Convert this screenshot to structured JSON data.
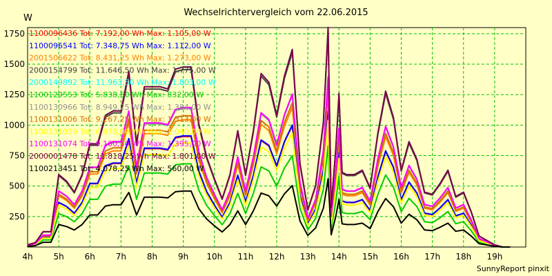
{
  "chart_data": {
    "type": "line",
    "title": "Wechselrichtervergleich vom 22.06.2015",
    "ylabel": "W",
    "xlabel": "",
    "ylim": [
      0,
      1800
    ],
    "xlim": [
      4,
      20
    ],
    "yticks": [
      250,
      500,
      750,
      1000,
      1250,
      1500,
      1750
    ],
    "xticks": [
      4,
      5,
      6,
      7,
      8,
      9,
      10,
      11,
      12,
      13,
      14,
      15,
      16,
      17,
      18,
      19
    ],
    "xtick_labels": [
      "4h",
      "5h",
      "6h",
      "7h",
      "8h",
      "9h",
      "10h",
      "11h",
      "12h",
      "13h",
      "14h",
      "15h",
      "16h",
      "17h",
      "18h",
      "19h"
    ],
    "grid": true,
    "footer": "SunnyReport pinxit",
    "x": [
      4,
      4.25,
      4.5,
      4.75,
      5,
      5.25,
      5.5,
      5.75,
      6,
      6.25,
      6.5,
      6.75,
      7,
      7.25,
      7.5,
      7.75,
      8,
      8.25,
      8.5,
      8.75,
      9,
      9.25,
      9.5,
      9.75,
      10,
      10.25,
      10.5,
      10.75,
      11,
      11.25,
      11.5,
      11.75,
      12,
      12.25,
      12.5,
      12.75,
      13,
      13.25,
      13.5,
      13.65,
      13.75,
      13.9,
      14,
      14.1,
      14.25,
      14.5,
      14.75,
      15,
      15.25,
      15.5,
      15.75,
      16,
      16.25,
      16.5,
      16.75,
      17,
      17.25,
      17.5,
      17.75,
      18,
      18.25,
      18.5,
      18.75,
      19,
      19.25,
      19.5
    ],
    "base_profile": [
      0.01,
      0.02,
      0.07,
      0.07,
      0.33,
      0.3,
      0.25,
      0.33,
      0.47,
      0.47,
      0.6,
      0.62,
      0.62,
      0.8,
      0.47,
      0.73,
      0.73,
      0.73,
      0.72,
      0.81,
      0.82,
      0.82,
      0.56,
      0.41,
      0.31,
      0.22,
      0.33,
      0.53,
      0.33,
      0.53,
      0.79,
      0.75,
      0.6,
      0.78,
      0.9,
      0.38,
      0.17,
      0.28,
      0.57,
      1.0,
      0.18,
      0.45,
      0.7,
      0.34,
      0.33,
      0.33,
      0.35,
      0.27,
      0.52,
      0.71,
      0.59,
      0.35,
      0.48,
      0.4,
      0.25,
      0.24,
      0.29,
      0.35,
      0.23,
      0.25,
      0.16,
      0.05,
      0.03,
      0.01,
      0.0,
      0.0
    ],
    "series": [
      {
        "id": "1100096436",
        "name": "1100096436 Tot: 7.192,00 Wh Max: 1.105,00 W",
        "color": "#ff0000",
        "max": 1105
      },
      {
        "id": "1100096541",
        "name": "1100096541 Tot: 7.348,75 Wh Max: 1.112,00 W",
        "color": "#0000ff",
        "max": 1112
      },
      {
        "id": "2001506622",
        "name": "2001506622 Tot: 8.431,25 Wh Max: 1.273,00 W",
        "color": "#ff8000",
        "max": 1273
      },
      {
        "id": "2000154799",
        "name": "2000154799 Tot: 11.646,50 Wh Max: 1.775,00 W",
        "color": "#404040",
        "max": 1775
      },
      {
        "id": "2000149892",
        "name": "2000149892 Tot: 11.963,50 Wh Max: 1.803,00 W",
        "color": "#00ffff",
        "max": 1803
      },
      {
        "id": "1100129553",
        "name": "1100129553 Tot: 5.838,50 Wh Max: 832,00 W",
        "color": "#00cc00",
        "max": 832
      },
      {
        "id": "1100130966",
        "name": "1100130966 Tot: 8.949,25 Wh Max: 1.384,00 W",
        "color": "#909090",
        "max": 1384
      },
      {
        "id": "1100131006",
        "name": "1100131006 Tot: 9.267,25 Wh Max: 1.313,00 W",
        "color": "#d07000",
        "max": 1313
      },
      {
        "id": "1100131039",
        "name": "1100131039 Tot: 6.878,00 Wh Max: 1.040,00 W",
        "color": "#ffff00",
        "max": 1040
      },
      {
        "id": "1100131074",
        "name": "1100131074 Tot: 9.100,50 Wh Max: 1.395,00 W",
        "color": "#ff00ff",
        "max": 1395
      },
      {
        "id": "2000001478",
        "name": "2000001478 Tot: 11.818,25 Wh Max: 1.801,00 W",
        "color": "#800040",
        "max": 1801
      },
      {
        "id": "1100213451",
        "name": "1100213451 Tot: 4.078,25 Wh Max: 560,00 W",
        "color": "#000000",
        "max": 560
      }
    ]
  }
}
